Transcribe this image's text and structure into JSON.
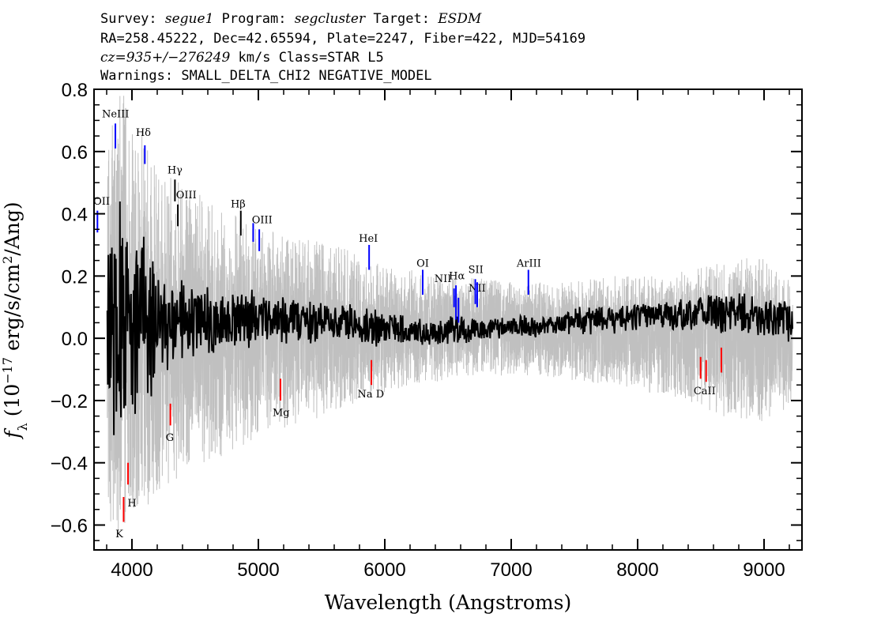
{
  "header": {
    "line1": [
      {
        "t": "Survey: ",
        "i": false
      },
      {
        "t": "segue1",
        "i": true
      },
      {
        "t": " Program: ",
        "i": false
      },
      {
        "t": "segcluster",
        "i": true
      },
      {
        "t": " Target: ",
        "i": false
      },
      {
        "t": "ESDM",
        "i": true
      }
    ],
    "line2": "RA=258.45222, Dec=42.65594, Plate=2247, Fiber=422, MJD=54169",
    "line3": [
      {
        "t": "cz=935+/−276249",
        "i": true
      },
      {
        "t": " km/s Class=STAR L5",
        "i": false
      }
    ],
    "line4": "Warnings: SMALL_DELTA_CHI2 NEGATIVE_MODEL"
  },
  "chart_data": {
    "type": "line",
    "xlabel": "Wavelength (Angstroms)",
    "ylabel": "f_λ (10^-17 erg/s/cm^2/Ang)",
    "xlim": [
      3700,
      9300
    ],
    "ylim": [
      -0.68,
      0.8
    ],
    "x_ticks": [
      4000,
      5000,
      6000,
      7000,
      8000,
      9000
    ],
    "x_ticklabels": [
      "4000",
      "5000",
      "6000",
      "7000",
      "8000",
      "9000"
    ],
    "y_ticks": [
      -0.6,
      -0.4,
      -0.2,
      0.0,
      0.2,
      0.4,
      0.6,
      0.8
    ],
    "y_ticklabels": [
      "−0.6",
      "−0.4",
      "−0.2",
      "0.0",
      "0.2",
      "0.4",
      "0.6",
      "0.8"
    ],
    "grid": false,
    "series": [
      {
        "role": "error_envelope",
        "color": "#c0c0c0",
        "x": [
          3800,
          3900,
          4000,
          4100,
          4200,
          4400,
          4600,
          4800,
          5000,
          5200,
          5400,
          5600,
          5800,
          6000,
          6200,
          6400,
          6600,
          6800,
          7000,
          7200,
          7400,
          7600,
          7800,
          8000,
          8200,
          8400,
          8600,
          8800,
          9000,
          9200
        ],
        "y_upper": [
          0.8,
          0.8,
          0.75,
          0.65,
          0.55,
          0.5,
          0.45,
          0.4,
          0.36,
          0.33,
          0.32,
          0.3,
          0.27,
          0.23,
          0.22,
          0.21,
          0.2,
          0.19,
          0.18,
          0.18,
          0.18,
          0.19,
          0.2,
          0.2,
          0.21,
          0.22,
          0.24,
          0.26,
          0.26,
          0.2
        ],
        "y_lower": [
          -0.68,
          -0.68,
          -0.6,
          -0.55,
          -0.5,
          -0.45,
          -0.4,
          -0.36,
          -0.32,
          -0.29,
          -0.27,
          -0.24,
          -0.2,
          -0.18,
          -0.15,
          -0.14,
          -0.13,
          -0.12,
          -0.12,
          -0.12,
          -0.13,
          -0.14,
          -0.15,
          -0.17,
          -0.18,
          -0.2,
          -0.24,
          -0.27,
          -0.27,
          -0.22
        ]
      },
      {
        "role": "flux",
        "color": "#000000",
        "x": [
          3800,
          3900,
          4000,
          4100,
          4200,
          4400,
          4600,
          4800,
          5000,
          5200,
          5400,
          5600,
          5800,
          6000,
          6200,
          6400,
          6600,
          6800,
          7000,
          7200,
          7400,
          7600,
          7800,
          8000,
          8200,
          8400,
          8600,
          8800,
          9000,
          9200
        ],
        "amplitude": [
          0.4,
          0.45,
          0.35,
          0.3,
          0.2,
          0.14,
          0.12,
          0.11,
          0.1,
          0.09,
          0.08,
          0.07,
          0.07,
          0.06,
          0.05,
          0.05,
          0.05,
          0.04,
          0.04,
          0.04,
          0.04,
          0.05,
          0.05,
          0.05,
          0.05,
          0.06,
          0.07,
          0.07,
          0.07,
          0.07
        ],
        "offset": [
          0.0,
          0.02,
          0.03,
          0.04,
          0.05,
          0.05,
          0.05,
          0.06,
          0.06,
          0.06,
          0.05,
          0.05,
          0.04,
          0.03,
          0.02,
          0.02,
          0.03,
          0.03,
          0.04,
          0.04,
          0.05,
          0.06,
          0.06,
          0.07,
          0.07,
          0.08,
          0.08,
          0.08,
          0.07,
          0.05
        ]
      }
    ],
    "emission_lines": [
      {
        "label": "OII",
        "x": 3727,
        "y_top": 0.41,
        "y_bot": 0.34,
        "lx": 3760,
        "ly": 0.43,
        "color": "#0000ff"
      },
      {
        "label": "NeIII",
        "x": 3869,
        "y_top": 0.69,
        "y_bot": 0.61,
        "lx": 3870,
        "ly": 0.71,
        "color": "#0000ff"
      },
      {
        "label": "Hδ",
        "x": 4102,
        "y_top": 0.62,
        "y_bot": 0.56,
        "lx": 4090,
        "ly": 0.65,
        "color": "#0000ff"
      },
      {
        "label": "Hγ",
        "x": 4340,
        "y_top": 0.51,
        "y_bot": 0.44,
        "lx": 4340,
        "ly": 0.53,
        "color": "#000000"
      },
      {
        "label": "OIII",
        "x": 4363,
        "y_top": 0.43,
        "y_bot": 0.36,
        "lx": 4430,
        "ly": 0.45,
        "color": "#000000"
      },
      {
        "label": "Hβ",
        "x": 4861,
        "y_top": 0.41,
        "y_bot": 0.33,
        "lx": 4840,
        "ly": 0.42,
        "color": "#000000"
      },
      {
        "label": "OIII",
        "x": 4959,
        "y_top": 0.37,
        "y_bot": 0.31,
        "lx": 5030,
        "ly": 0.37,
        "color": "#0000ff"
      },
      {
        "label": "",
        "x": 5007,
        "y_top": 0.35,
        "y_bot": 0.28,
        "lx": 5007,
        "ly": 0.35,
        "color": "#0000ff"
      },
      {
        "label": "HeI",
        "x": 5876,
        "y_top": 0.3,
        "y_bot": 0.22,
        "lx": 5870,
        "ly": 0.31,
        "color": "#0000ff"
      },
      {
        "label": "OI",
        "x": 6300,
        "y_top": 0.22,
        "y_bot": 0.14,
        "lx": 6300,
        "ly": 0.23,
        "color": "#0000ff"
      },
      {
        "label": "NII",
        "x": 6548,
        "y_top": 0.16,
        "y_bot": 0.1,
        "lx": 6460,
        "ly": 0.18,
        "color": "#0000ff"
      },
      {
        "label": "Hα",
        "x": 6563,
        "y_top": 0.17,
        "y_bot": 0.06,
        "lx": 6570,
        "ly": 0.19,
        "color": "#0000ff"
      },
      {
        "label": "NII",
        "x": 6583,
        "y_top": 0.13,
        "y_bot": 0.05,
        "lx": 6730,
        "ly": 0.15,
        "color": "#0000ff"
      },
      {
        "label": "SII",
        "x": 6716,
        "y_top": 0.19,
        "y_bot": 0.11,
        "lx": 6720,
        "ly": 0.21,
        "color": "#0000ff"
      },
      {
        "label": "",
        "x": 6731,
        "y_top": 0.18,
        "y_bot": 0.1,
        "lx": 6731,
        "ly": 0.18,
        "color": "#0000ff"
      },
      {
        "label": "ArIII",
        "x": 7136,
        "y_top": 0.22,
        "y_bot": 0.14,
        "lx": 7140,
        "ly": 0.23,
        "color": "#0000ff"
      }
    ],
    "absorption_lines": [
      {
        "label": "K",
        "x": 3934,
        "y_top": -0.51,
        "y_bot": -0.59,
        "lx": 3900,
        "ly": -0.64,
        "color": "#ff0000"
      },
      {
        "label": "H",
        "x": 3969,
        "y_top": -0.4,
        "y_bot": -0.47,
        "lx": 4000,
        "ly": -0.54,
        "color": "#ff0000"
      },
      {
        "label": "G",
        "x": 4304,
        "y_top": -0.21,
        "y_bot": -0.28,
        "lx": 4300,
        "ly": -0.33,
        "color": "#ff0000"
      },
      {
        "label": "Mg",
        "x": 5175,
        "y_top": -0.13,
        "y_bot": -0.2,
        "lx": 5180,
        "ly": -0.25,
        "color": "#ff0000"
      },
      {
        "label": "Na D",
        "x": 5894,
        "y_top": -0.07,
        "y_bot": -0.15,
        "lx": 5890,
        "ly": -0.19,
        "color": "#ff0000"
      },
      {
        "label": "CaII",
        "x": 8542,
        "y_top": -0.07,
        "y_bot": -0.14,
        "lx": 8530,
        "ly": -0.18,
        "color": "#ff0000"
      },
      {
        "label": "",
        "x": 8498,
        "y_top": -0.06,
        "y_bot": -0.13,
        "lx": 8498,
        "ly": -0.06,
        "color": "#ff0000"
      },
      {
        "label": "",
        "x": 8662,
        "y_top": -0.03,
        "y_bot": -0.11,
        "lx": 8662,
        "ly": -0.03,
        "color": "#ff0000"
      }
    ]
  }
}
